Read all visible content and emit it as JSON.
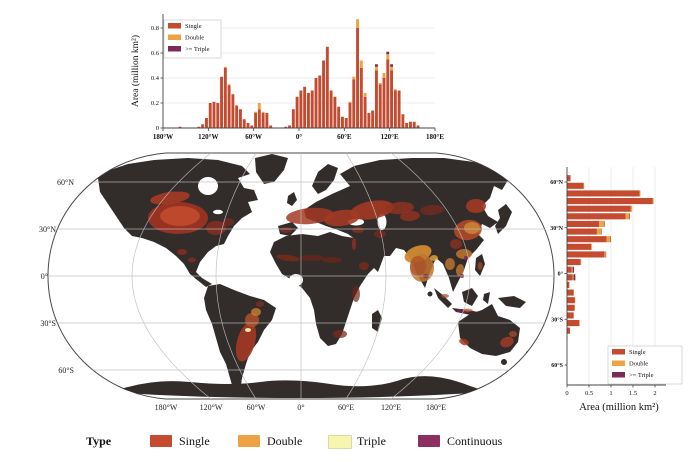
{
  "colors": {
    "single": "#c44a30",
    "double": "#eda343",
    "ge_triple": "#7c2a56",
    "triple_pale": "#f7f6ae",
    "continuous": "#8e2f62",
    "land": "#322d2b",
    "grid": "#ececec",
    "graticule": "#bdbdbd",
    "axis": "#444444",
    "background": "#ffffff"
  },
  "type_legend": {
    "title": "Type",
    "items": [
      {
        "label": "Single",
        "color": "#c44a30"
      },
      {
        "label": "Double",
        "color": "#eda343"
      },
      {
        "label": "Triple",
        "color": "#f7f6ae"
      },
      {
        "label": "Continuous",
        "color": "#8e2f62"
      }
    ]
  },
  "map": {
    "projection": "robinson",
    "lat_labels": [
      {
        "text": "60°N",
        "lat": 60
      },
      {
        "text": "30°N",
        "lat": 30
      },
      {
        "text": "0°",
        "lat": 0
      },
      {
        "text": "30°S",
        "lat": -30
      },
      {
        "text": "60°S",
        "lat": -60
      }
    ],
    "lon_labels": [
      {
        "text": "180°W",
        "lon": -180
      },
      {
        "text": "120°W",
        "lon": -120
      },
      {
        "text": "60°W",
        "lon": -60
      },
      {
        "text": "0°",
        "lon": 0
      },
      {
        "text": "60°E",
        "lon": 60
      },
      {
        "text": "120°E",
        "lon": 120
      },
      {
        "text": "180°E",
        "lon": 180
      }
    ]
  },
  "chart_data": [
    {
      "id": "longitude-histogram",
      "type": "bar",
      "stacked": true,
      "orientation": "vertical",
      "ylabel": "Area (million km²)",
      "xlabel": "",
      "y_ticks": [
        0,
        0.2,
        0.4,
        0.6,
        0.8
      ],
      "y_tick_labels": [
        "0",
        "0.2",
        "0.4",
        "0.6",
        "0.8"
      ],
      "ylim": [
        0,
        0.9
      ],
      "x_ticks": [
        "180°W",
        "120°W",
        "60°W",
        "0°",
        "60°E",
        "120°E",
        "180°E"
      ],
      "x_tick_lons": [
        -180,
        -120,
        -60,
        0,
        60,
        120,
        180
      ],
      "xlim": [
        -180,
        180
      ],
      "bin_width_deg": 5,
      "grid": true,
      "legend_position": "upper left",
      "bin_centers": [
        -177.5,
        -172.5,
        -167.5,
        -162.5,
        -157.5,
        -152.5,
        -147.5,
        -142.5,
        -137.5,
        -132.5,
        -127.5,
        -122.5,
        -117.5,
        -112.5,
        -107.5,
        -102.5,
        -97.5,
        -92.5,
        -87.5,
        -82.5,
        -77.5,
        -72.5,
        -67.5,
        -62.5,
        -57.5,
        -52.5,
        -47.5,
        -42.5,
        -37.5,
        -32.5,
        -27.5,
        -22.5,
        -17.5,
        -12.5,
        -7.5,
        -2.5,
        2.5,
        7.5,
        12.5,
        17.5,
        22.5,
        27.5,
        32.5,
        37.5,
        42.5,
        47.5,
        52.5,
        57.5,
        62.5,
        67.5,
        72.5,
        77.5,
        82.5,
        87.5,
        92.5,
        97.5,
        102.5,
        107.5,
        112.5,
        117.5,
        122.5,
        127.5,
        132.5,
        137.5,
        142.5,
        147.5,
        152.5,
        157.5,
        162.5,
        167.5,
        172.5,
        177.5
      ],
      "series": [
        {
          "name": "Single",
          "values": [
            0,
            0,
            0,
            0,
            0.01,
            0,
            0,
            0,
            0,
            0.01,
            0.03,
            0.08,
            0.2,
            0.21,
            0.2,
            0.41,
            0.48,
            0.34,
            0.27,
            0.18,
            0.15,
            0.07,
            0.04,
            0.02,
            0.12,
            0.15,
            0.12,
            0.12,
            0.02,
            0,
            0,
            0,
            0.01,
            0.02,
            0.15,
            0.25,
            0.3,
            0.33,
            0.28,
            0.3,
            0.4,
            0.42,
            0.54,
            0.65,
            0.3,
            0.25,
            0.17,
            0.09,
            0.08,
            0.2,
            0.39,
            0.8,
            0.48,
            0.25,
            0.12,
            0.14,
            0.46,
            0.35,
            0.4,
            0.55,
            0.46,
            0.3,
            0.3,
            0.11,
            0.04,
            0.05,
            0.05,
            0.02,
            0,
            0,
            0,
            0
          ]
        },
        {
          "name": "Double",
          "values": [
            0,
            0,
            0,
            0,
            0,
            0,
            0,
            0,
            0,
            0,
            0,
            0,
            0,
            0,
            0,
            0,
            0.01,
            0.01,
            0,
            0,
            0,
            0,
            0,
            0,
            0.01,
            0.05,
            0.01,
            0,
            0,
            0,
            0,
            0,
            0,
            0,
            0,
            0,
            0,
            0,
            0,
            0,
            0,
            0,
            0,
            0,
            0,
            0,
            0,
            0,
            0,
            0.01,
            0.02,
            0.07,
            0.06,
            0.03,
            0,
            0,
            0.03,
            0.01,
            0.04,
            0.04,
            0.03,
            0.01,
            0,
            0,
            0,
            0,
            0,
            0,
            0,
            0,
            0,
            0
          ]
        },
        {
          "name": ">= Triple",
          "values": [
            0,
            0,
            0,
            0,
            0,
            0,
            0,
            0,
            0,
            0,
            0,
            0,
            0,
            0,
            0,
            0,
            0,
            0,
            0,
            0,
            0,
            0,
            0,
            0,
            0,
            0,
            0,
            0,
            0,
            0,
            0,
            0,
            0,
            0,
            0,
            0,
            0,
            0,
            0,
            0,
            0,
            0,
            0,
            0,
            0,
            0,
            0,
            0,
            0,
            0,
            0,
            0,
            0,
            0,
            0,
            0,
            0.02,
            0,
            0,
            0.02,
            0.02,
            0,
            0,
            0,
            0,
            0,
            0,
            0,
            0,
            0,
            0,
            0
          ]
        }
      ],
      "legend": [
        "Single",
        "Double",
        ">= Triple"
      ]
    },
    {
      "id": "latitude-histogram",
      "type": "bar",
      "stacked": true,
      "orientation": "horizontal",
      "xlabel": "Area (million km²)",
      "ylabel": "",
      "x_ticks": [
        0,
        0.5,
        1,
        1.5,
        2
      ],
      "x_tick_labels": [
        "0",
        "0.5",
        "1",
        "1.5",
        "2"
      ],
      "xlim": [
        0,
        2.2
      ],
      "y_ticks": [
        "60°N",
        "30°N",
        "0°",
        "30°S",
        "60°S"
      ],
      "y_tick_lats": [
        60,
        30,
        0,
        -30,
        -60
      ],
      "bin_width_deg": 5,
      "grid": true,
      "legend_position": "lower right",
      "bin_centers": [
        62.5,
        57.5,
        52.5,
        47.5,
        42.5,
        37.5,
        32.5,
        27.5,
        22.5,
        17.5,
        12.5,
        7.5,
        2.5,
        -2.5,
        -7.5,
        -12.5,
        -17.5,
        -22.5,
        -27.5,
        -32.5,
        -37.5,
        -42.5
      ],
      "series": [
        {
          "name": "Single",
          "values": [
            0.08,
            0.38,
            1.65,
            1.95,
            1.45,
            1.33,
            0.73,
            0.68,
            0.9,
            0.55,
            0.85,
            0.3,
            0.11,
            0.13,
            0.05,
            0.15,
            0.18,
            0.17,
            0.15,
            0.28,
            0.07,
            0.01
          ]
        },
        {
          "name": "Double",
          "values": [
            0,
            0.01,
            0.02,
            0.02,
            0.03,
            0.09,
            0.12,
            0.1,
            0.09,
            0.02,
            0.03,
            0.01,
            0.02,
            0.02,
            0.01,
            0.01,
            0.01,
            0.01,
            0.005,
            0.01,
            0,
            0
          ]
        },
        {
          "name": ">= Triple",
          "values": [
            0,
            0,
            0,
            0,
            0,
            0.01,
            0.01,
            0.01,
            0.01,
            0,
            0.01,
            0.01,
            0.03,
            0.04,
            0,
            0,
            0,
            0,
            0,
            0,
            0,
            0
          ]
        }
      ],
      "legend": [
        "Single",
        "Double",
        ">= Triple"
      ]
    }
  ]
}
